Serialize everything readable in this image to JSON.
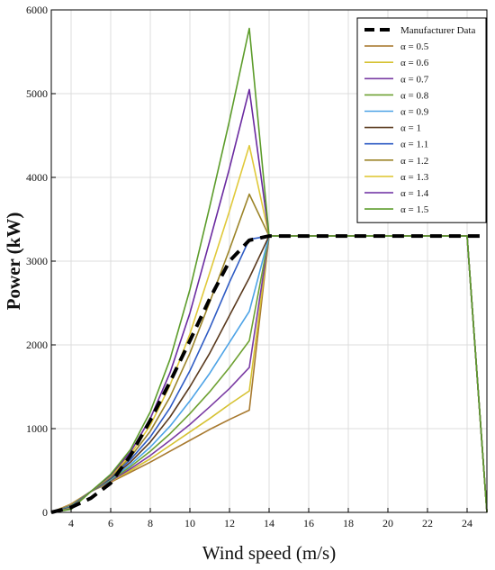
{
  "chart_data": {
    "type": "line",
    "xlabel": "Wind speed (m/s)",
    "ylabel": "Power (kW)",
    "xlim": [
      3,
      25
    ],
    "ylim": [
      0,
      6000
    ],
    "xticks": [
      4,
      6,
      8,
      10,
      12,
      14,
      16,
      18,
      20,
      22,
      24
    ],
    "yticks": [
      0,
      1000,
      2000,
      3000,
      4000,
      5000,
      6000
    ],
    "grid": true,
    "legend_position": "top-right",
    "x": [
      3,
      4,
      5,
      6,
      7,
      8,
      9,
      10,
      11,
      12,
      13,
      14,
      24,
      25
    ],
    "series": [
      {
        "name": "Manufacturer Data",
        "color": "#000000",
        "dashed": true,
        "values": [
          0,
          60,
          170,
          350,
          680,
          1100,
          1560,
          2050,
          2550,
          3000,
          3250,
          3300,
          3300,
          3300
        ]
      },
      {
        "name": "α = 0.5",
        "color": "#a87a30",
        "values": [
          0,
          100,
          250,
          360,
          480,
          600,
          730,
          860,
          990,
          1110,
          1220,
          3300,
          3300,
          0
        ]
      },
      {
        "name": "α = 0.6",
        "color": "#d6c233",
        "values": [
          0,
          92,
          250,
          370,
          500,
          640,
          800,
          960,
          1120,
          1290,
          1450,
          3300,
          3300,
          0
        ]
      },
      {
        "name": "α = 0.7",
        "color": "#7a3ba3",
        "values": [
          0,
          85,
          250,
          375,
          520,
          680,
          860,
          1050,
          1260,
          1480,
          1730,
          3300,
          3300,
          0
        ]
      },
      {
        "name": "α = 0.8",
        "color": "#6ea132",
        "values": [
          0,
          78,
          250,
          385,
          545,
          730,
          940,
          1180,
          1440,
          1730,
          2050,
          3300,
          3300,
          0
        ]
      },
      {
        "name": "α = 0.9",
        "color": "#4da3e6",
        "values": [
          0,
          70,
          250,
          395,
          570,
          780,
          1030,
          1330,
          1660,
          2030,
          2400,
          3300,
          3300,
          0
        ]
      },
      {
        "name": "α = 1",
        "color": "#5a3a1e",
        "values": [
          0,
          63,
          250,
          405,
          600,
          840,
          1140,
          1500,
          1900,
          2350,
          2800,
          3300,
          3300,
          0
        ]
      },
      {
        "name": "α = 1.1",
        "color": "#2e5bc4",
        "values": [
          0,
          57,
          250,
          415,
          630,
          900,
          1250,
          1690,
          2200,
          2750,
          3260,
          3300,
          3300,
          0
        ]
      },
      {
        "name": "α = 1.2",
        "color": "#9c8428",
        "values": [
          0,
          51,
          250,
          425,
          660,
          970,
          1380,
          1900,
          2510,
          3140,
          3800,
          3300,
          3300,
          0
        ]
      },
      {
        "name": "α = 1.3",
        "color": "#e0c93a",
        "values": [
          0,
          46,
          250,
          435,
          690,
          1040,
          1520,
          2130,
          2860,
          3600,
          4380,
          3300,
          3300,
          0
        ]
      },
      {
        "name": "α = 1.4",
        "color": "#6a2aa0",
        "values": [
          0,
          41,
          250,
          445,
          720,
          1120,
          1670,
          2380,
          3240,
          4110,
          5050,
          3300,
          3300,
          0
        ]
      },
      {
        "name": "α = 1.5",
        "color": "#5c9c2a",
        "values": [
          0,
          37,
          250,
          455,
          750,
          1200,
          1830,
          2660,
          3650,
          4680,
          5780,
          3300,
          3300,
          0
        ]
      }
    ]
  }
}
